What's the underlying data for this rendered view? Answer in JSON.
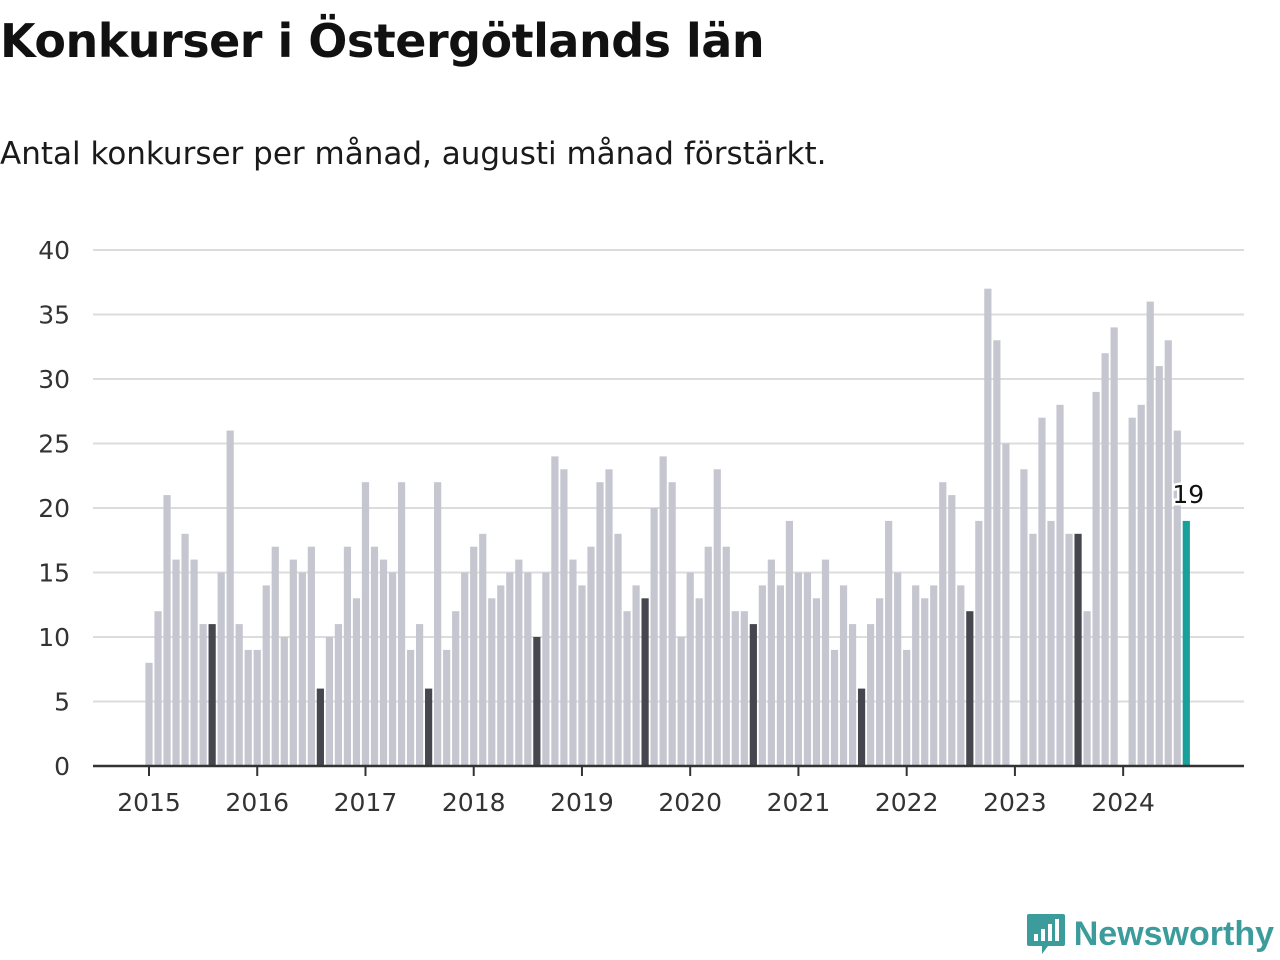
{
  "title": "Konkurser i Östergötlands län",
  "subtitle": "Antal konkurser per månad, augusti månad förstärkt.",
  "brand": {
    "name": "Newsworthy",
    "icon": "newsworthy-logo-icon",
    "color": "#3c9c9c"
  },
  "colors": {
    "regular": "#c5c6d0",
    "august": "#46464f",
    "latest": "#1aa09a",
    "grid": "#dcdcdc",
    "axis": "#333333"
  },
  "chart_data": {
    "type": "bar",
    "title": "Konkurser i Östergötlands län",
    "subtitle": "Antal konkurser per månad, augusti månad förstärkt.",
    "xlabel": "",
    "ylabel": "",
    "ylim": [
      0,
      40
    ],
    "yticks": [
      0,
      5,
      10,
      15,
      20,
      25,
      30,
      35,
      40
    ],
    "year_ticks": [
      "2015",
      "2016",
      "2017",
      "2018",
      "2019",
      "2020",
      "2021",
      "2022",
      "2023",
      "2024"
    ],
    "grid": true,
    "start": "2015-01",
    "end": "2024-08",
    "highlight": "augusti",
    "latest_label": "19",
    "years": [
      {
        "year": "2015",
        "values": [
          8,
          12,
          21,
          16,
          18,
          16,
          11,
          11,
          15,
          26,
          11,
          9
        ]
      },
      {
        "year": "2016",
        "values": [
          9,
          14,
          17,
          10,
          16,
          15,
          17,
          6,
          10,
          11,
          17,
          13
        ]
      },
      {
        "year": "2017",
        "values": [
          22,
          17,
          16,
          15,
          22,
          9,
          11,
          6,
          22,
          9,
          12,
          15
        ]
      },
      {
        "year": "2018",
        "values": [
          17,
          18,
          13,
          14,
          15,
          16,
          15,
          10,
          15,
          24,
          23,
          16
        ]
      },
      {
        "year": "2019",
        "values": [
          14,
          17,
          22,
          23,
          18,
          12,
          14,
          13,
          20,
          24,
          22,
          10
        ]
      },
      {
        "year": "2020",
        "values": [
          15,
          13,
          17,
          23,
          17,
          12,
          12,
          11,
          14,
          16,
          14,
          19
        ]
      },
      {
        "year": "2021",
        "values": [
          15,
          15,
          13,
          16,
          9,
          14,
          11,
          6,
          11,
          13,
          19,
          15
        ]
      },
      {
        "year": "2022",
        "values": [
          9,
          14,
          13,
          14,
          22,
          21,
          14,
          12,
          19,
          37,
          33,
          25
        ]
      },
      {
        "year": "2023",
        "values": [
          0,
          23,
          18,
          27,
          19,
          28,
          18,
          18,
          12,
          29,
          32,
          34
        ]
      },
      {
        "year": "2024",
        "values": [
          0,
          27,
          28,
          36,
          31,
          33,
          26,
          19
        ]
      }
    ]
  }
}
